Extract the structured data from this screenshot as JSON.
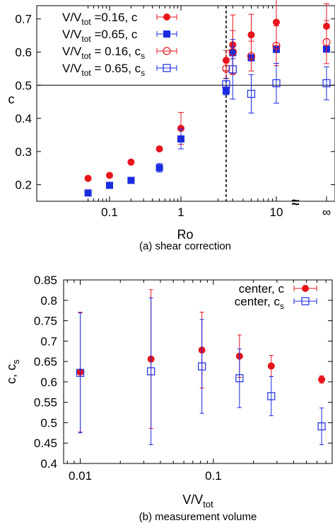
{
  "chart_data": [
    {
      "type": "scatter",
      "caption": "(a) shear correction",
      "xlabel": "Ro",
      "ylabel": "c",
      "x_scale": "log",
      "x_ticks": [
        "0.1",
        "1",
        "10",
        "∞"
      ],
      "y_ticks": [
        "0.2",
        "0.3",
        "0.4",
        "0.5",
        "0.6",
        "0.7"
      ],
      "ylim": [
        0.15,
        0.74
      ],
      "axis_break_symbol": "≈",
      "hline": 0.5,
      "vline_dashed": 2.5,
      "legend_placement": "top-left",
      "colors": {
        "red": "#e8141c",
        "blue": "#1a2be0"
      },
      "legend": [
        {
          "base": "V/V",
          "sub": "tot",
          "rest": " =0.16, c",
          "color": "#e8141c",
          "marker": "filled-circle"
        },
        {
          "base": "V/V",
          "sub": "tot",
          "rest": " =0.65, c",
          "color": "#1a2be0",
          "marker": "filled-square"
        },
        {
          "base": "V/V",
          "sub": "tot",
          "rest": " = 0.16, c",
          "tail_sub": "s",
          "color": "#e8141c",
          "marker": "open-circle"
        },
        {
          "base": "V/V",
          "sub": "tot",
          "rest": " = 0.65, c",
          "tail_sub": "s",
          "color": "#1a2be0",
          "marker": "open-square"
        }
      ],
      "series": [
        {
          "style": "filled-circle",
          "color": "#e8141c",
          "points": [
            {
              "x": 0.05,
              "y": 0.219,
              "err": 0
            },
            {
              "x": 0.1,
              "y": 0.228,
              "err": 0
            },
            {
              "x": 0.2,
              "y": 0.268,
              "err": 0
            },
            {
              "x": 0.5,
              "y": 0.308,
              "err": 0
            },
            {
              "x": 1,
              "y": 0.37,
              "err": 0.048
            },
            {
              "x": 2.5,
              "y": 0.575,
              "err": 0.03
            },
            {
              "x": 3,
              "y": 0.622,
              "err": 0.09
            },
            {
              "x": 5,
              "y": 0.652,
              "err": 0.062
            },
            {
              "x": 10,
              "y": 0.69,
              "err": 0.07
            },
            {
              "x": "inf",
              "y": 0.678,
              "err": 0.068
            }
          ]
        },
        {
          "style": "filled-square",
          "color": "#1a2be0",
          "points": [
            {
              "x": 0.05,
              "y": 0.175,
              "err": 0
            },
            {
              "x": 0.1,
              "y": 0.198,
              "err": 0.008
            },
            {
              "x": 0.2,
              "y": 0.213,
              "err": 0.009
            },
            {
              "x": 0.5,
              "y": 0.251,
              "err": 0.013
            },
            {
              "x": 1,
              "y": 0.338,
              "err": 0.03
            },
            {
              "x": 2.5,
              "y": 0.483,
              "err": 0.012
            },
            {
              "x": 3,
              "y": 0.598,
              "err": 0.018
            },
            {
              "x": 5,
              "y": 0.583,
              "err": 0.01
            },
            {
              "x": 10,
              "y": 0.608,
              "err": 0.008
            },
            {
              "x": "inf",
              "y": 0.609,
              "err": 0.008
            }
          ]
        },
        {
          "style": "open-circle",
          "color": "#e8141c",
          "points": [
            {
              "x": 2.5,
              "y": 0.55,
              "err": 0.03
            },
            {
              "x": 3,
              "y": 0.6,
              "err": 0.065
            },
            {
              "x": 5,
              "y": 0.588,
              "err": 0.045
            },
            {
              "x": 10,
              "y": 0.619,
              "err": 0.06
            },
            {
              "x": "inf",
              "y": 0.63,
              "err": 0.065
            }
          ]
        },
        {
          "style": "open-square",
          "color": "#1a2be0",
          "points": [
            {
              "x": 2.5,
              "y": 0.503,
              "err": 0.018
            },
            {
              "x": 3,
              "y": 0.548,
              "err": 0.09
            },
            {
              "x": 5,
              "y": 0.474,
              "err": 0.058
            },
            {
              "x": 10,
              "y": 0.506,
              "err": 0.06
            },
            {
              "x": "inf",
              "y": 0.506,
              "err": 0.05
            }
          ]
        }
      ]
    },
    {
      "type": "scatter",
      "caption": "(b) measurement volume",
      "ylabel_base": "c, c",
      "ylabel_sub": "s",
      "xlabel_base": "V/V",
      "xlabel_sub": "tot",
      "x_scale": "log",
      "x_ticks": [
        "0.01",
        "0.1"
      ],
      "y_ticks": [
        "0.4",
        "0.45",
        "0.5",
        "0.55",
        "0.6",
        "0.65",
        "0.7",
        "0.75",
        "0.8",
        "0.85"
      ],
      "xlim": [
        0.0075,
        0.78
      ],
      "ylim": [
        0.4,
        0.85
      ],
      "legend_placement": "top-right",
      "legend": [
        {
          "base": "center, c",
          "color": "#e8141c",
          "marker": "filled-circle"
        },
        {
          "base": "center, c",
          "tail_sub": "s",
          "color": "#1a2be0",
          "marker": "open-square"
        }
      ],
      "series": [
        {
          "style": "filled-circle",
          "color": "#e8141c",
          "points": [
            {
              "x": 0.01,
              "y": 0.624,
              "err": 0.147
            },
            {
              "x": 0.034,
              "y": 0.656,
              "err": 0.17
            },
            {
              "x": 0.082,
              "y": 0.678,
              "err": 0.093
            },
            {
              "x": 0.157,
              "y": 0.663,
              "err": 0.052
            },
            {
              "x": 0.272,
              "y": 0.639,
              "err": 0.026
            },
            {
              "x": 0.65,
              "y": 0.606,
              "err": 0.009
            }
          ]
        },
        {
          "style": "open-square",
          "color": "#1a2be0",
          "points": [
            {
              "x": 0.01,
              "y": 0.622,
              "err": 0.147
            },
            {
              "x": 0.034,
              "y": 0.626,
              "err": 0.18
            },
            {
              "x": 0.082,
              "y": 0.638,
              "err": 0.115
            },
            {
              "x": 0.157,
              "y": 0.609,
              "err": 0.072
            },
            {
              "x": 0.272,
              "y": 0.565,
              "err": 0.048
            },
            {
              "x": 0.65,
              "y": 0.491,
              "err": 0.045
            }
          ]
        }
      ]
    }
  ]
}
